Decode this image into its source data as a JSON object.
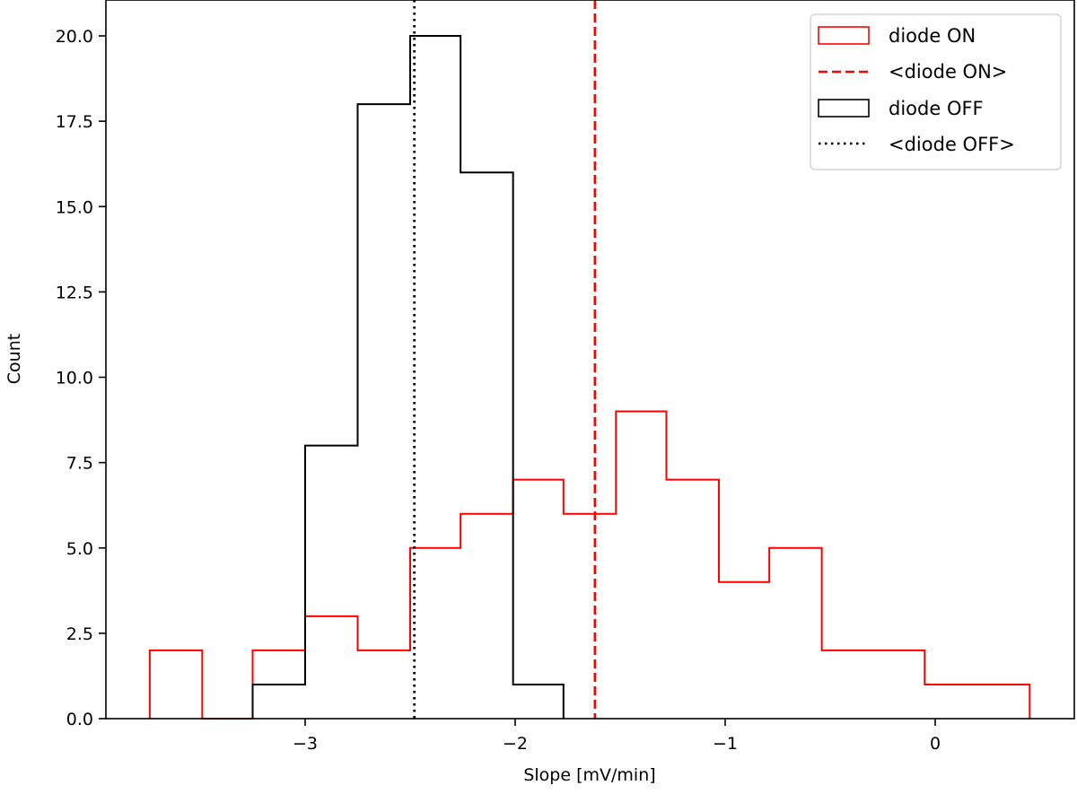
{
  "chart_data": {
    "type": "histogram",
    "title": "",
    "xlabel": "Slope [mV/min]",
    "ylabel": "Count",
    "xlim": [
      -3.95,
      0.65
    ],
    "ylim": [
      0,
      21
    ],
    "xticks": [
      -3,
      -2,
      -1,
      0
    ],
    "xtick_labels": [
      "−3",
      "−2",
      "−1",
      "0"
    ],
    "yticks": [
      0,
      2.5,
      5,
      7.5,
      10,
      12.5,
      15,
      17.5,
      20
    ],
    "ytick_labels": [
      "0.0",
      "2.5",
      "5.0",
      "7.5",
      "10.0",
      "12.5",
      "15.0",
      "17.5",
      "20.0"
    ],
    "grid": false,
    "legend_position": "upper right",
    "series": [
      {
        "name": "diode ON",
        "style": "step-outline",
        "color": "#ff0000",
        "bin_edges": [
          -3.74,
          -3.49,
          -3.25,
          -3.0,
          -2.75,
          -2.5,
          -2.26,
          -2.01,
          -1.77,
          -1.52,
          -1.28,
          -1.03,
          -0.79,
          -0.54,
          -0.29,
          -0.05,
          0.2,
          0.45
        ],
        "counts": [
          2,
          0,
          2,
          3,
          2,
          5,
          6,
          7,
          6,
          9,
          7,
          4,
          5,
          2,
          2,
          1,
          1
        ]
      },
      {
        "name": "<diode ON>",
        "style": "vline-dashed",
        "color": "#ff0000",
        "x": -1.62
      },
      {
        "name": "diode OFF",
        "style": "step-outline",
        "color": "#000000",
        "bin_edges": [
          -3.25,
          -3.0,
          -2.75,
          -2.5,
          -2.26,
          -2.01,
          -1.77
        ],
        "counts": [
          1,
          8,
          18,
          20,
          16,
          1
        ]
      },
      {
        "name": "<diode OFF>",
        "style": "vline-dotted",
        "color": "#000000",
        "x": -2.48
      }
    ]
  },
  "legend": {
    "items": [
      {
        "label": "diode ON",
        "color": "#ff0000",
        "style": "box"
      },
      {
        "label": "<diode ON>",
        "color": "#ff0000",
        "style": "dashed"
      },
      {
        "label": "diode OFF",
        "color": "#000000",
        "style": "box"
      },
      {
        "label": "<diode OFF>",
        "color": "#000000",
        "style": "dotted"
      }
    ]
  }
}
